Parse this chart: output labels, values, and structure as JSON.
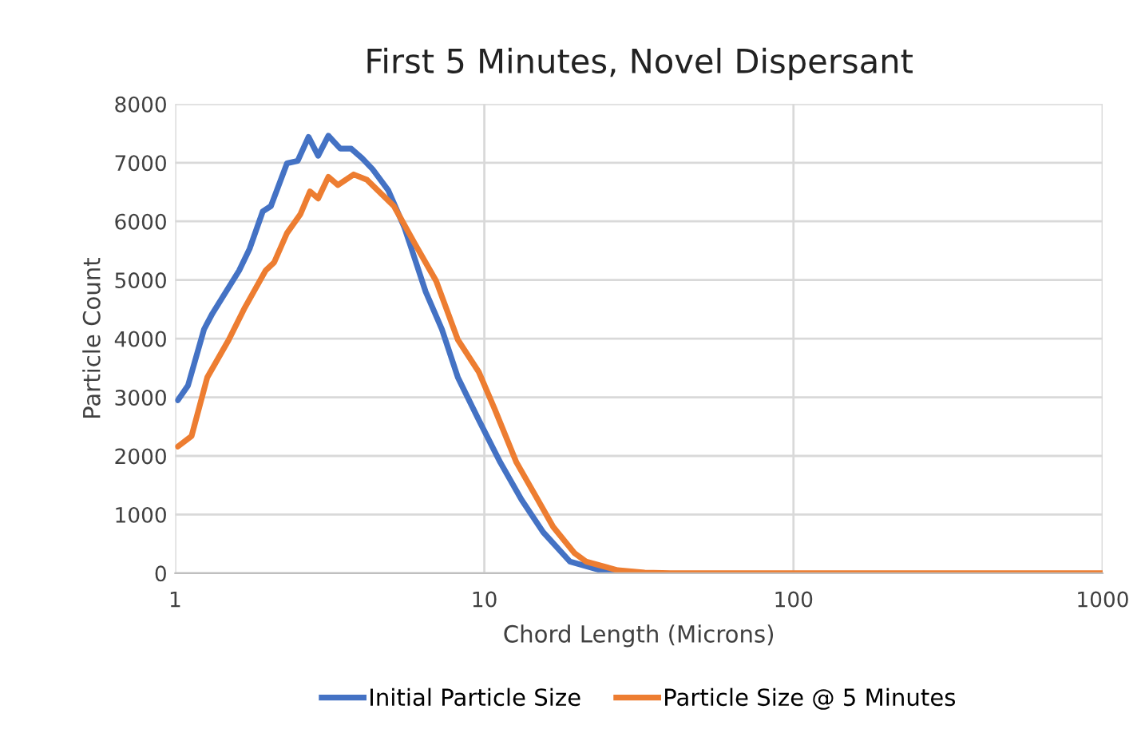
{
  "chart_data": {
    "type": "line",
    "title": "First 5 Minutes, Novel Dispersant",
    "xlabel": "Chord Length (Microns)",
    "ylabel": "Particle Count",
    "log": "x",
    "xlim": [
      1,
      1000
    ],
    "xticks": [
      1,
      10,
      100,
      1000
    ],
    "ylim": [
      0,
      8000
    ],
    "yticks": [
      0,
      1000,
      2000,
      3000,
      4000,
      5000,
      6000,
      7000,
      8000
    ],
    "grid": true,
    "legend": "bottom",
    "marker": "none",
    "line_style": "solid",
    "series": [
      {
        "name": "Initial Particle Size",
        "color": "#4472c4",
        "x": [
          1.02,
          1.1,
          1.24,
          1.32,
          1.61,
          1.74,
          1.92,
          2.04,
          2.3,
          2.49,
          2.7,
          2.9,
          3.13,
          3.42,
          3.71,
          4.02,
          4.35,
          4.89,
          5.52,
          6.46,
          7.29,
          8.21,
          9.6,
          11.26,
          13.2,
          15.5,
          18.9,
          24.9,
          30
        ],
        "values": [
          2950,
          3200,
          4160,
          4430,
          5160,
          5530,
          6170,
          6260,
          6990,
          7030,
          7440,
          7120,
          7460,
          7240,
          7240,
          7080,
          6890,
          6530,
          5890,
          4800,
          4160,
          3340,
          2610,
          1890,
          1250,
          700,
          200,
          20,
          0
        ]
      },
      {
        "name": "Particle Size @ 5 Minutes",
        "color": "#ed7d31",
        "x": [
          1.02,
          1.13,
          1.27,
          1.49,
          1.68,
          1.96,
          2.09,
          2.3,
          2.54,
          2.73,
          2.9,
          3.13,
          3.36,
          3.78,
          4.17,
          5.1,
          5.96,
          6.99,
          8.21,
          9.6,
          10.8,
          12.7,
          14.9,
          16.7,
          19.6,
          21.3,
          27,
          33,
          40,
          100,
          300,
          1000
        ],
        "values": [
          2160,
          2340,
          3340,
          3980,
          4530,
          5160,
          5300,
          5800,
          6120,
          6510,
          6390,
          6760,
          6620,
          6800,
          6710,
          6260,
          5620,
          4980,
          3980,
          3430,
          2800,
          1890,
          1250,
          790,
          340,
          200,
          50,
          10,
          0,
          0,
          0,
          0
        ]
      }
    ]
  }
}
